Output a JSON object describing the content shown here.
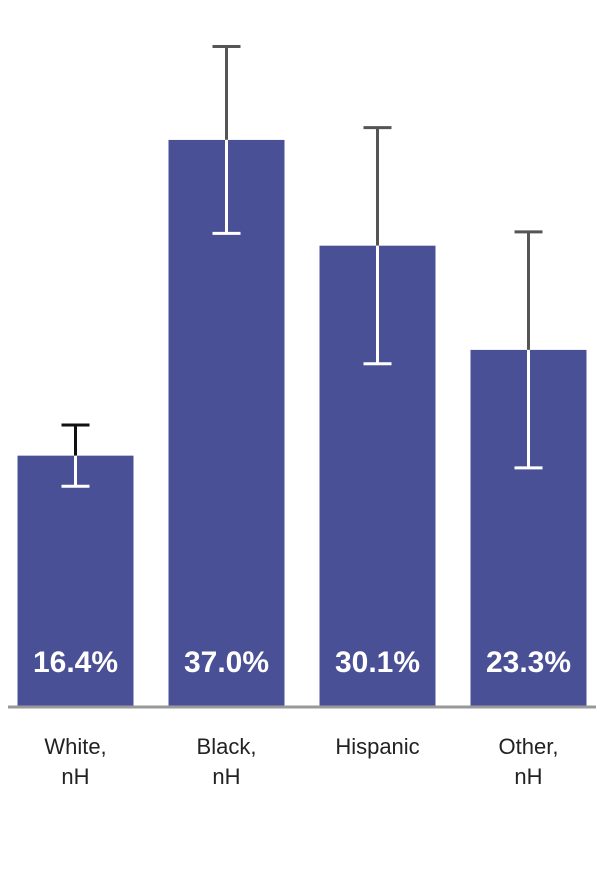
{
  "chart_data": {
    "type": "bar",
    "categories": [
      "White, nH",
      "Black, nH",
      "Hispanic",
      "Other, nH"
    ],
    "values": [
      16.4,
      37.0,
      30.1,
      23.3
    ],
    "value_labels": [
      "16.4%",
      "37.0%",
      "30.1%",
      "23.3%"
    ],
    "errors": [
      2.0,
      6.1,
      7.7,
      7.7
    ],
    "color": "#4a5096",
    "ylim": [
      0,
      46
    ]
  }
}
